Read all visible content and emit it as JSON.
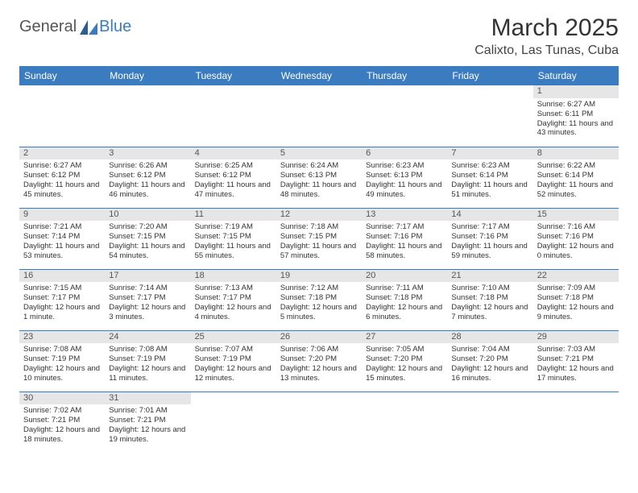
{
  "logo": {
    "text1": "General",
    "text2": "Blue"
  },
  "title": "March 2025",
  "location": "Calixto, Las Tunas, Cuba",
  "colors": {
    "header_bg": "#3b7bbf",
    "header_text": "#ffffff",
    "daynum_bg": "#e6e6e6",
    "row_border": "#3b7bbf",
    "background": "#ffffff"
  },
  "weekdays": [
    "Sunday",
    "Monday",
    "Tuesday",
    "Wednesday",
    "Thursday",
    "Friday",
    "Saturday"
  ],
  "weeks": [
    [
      null,
      null,
      null,
      null,
      null,
      null,
      {
        "n": "1",
        "sunrise": "Sunrise: 6:27 AM",
        "sunset": "Sunset: 6:11 PM",
        "daylight": "Daylight: 11 hours and 43 minutes."
      }
    ],
    [
      {
        "n": "2",
        "sunrise": "Sunrise: 6:27 AM",
        "sunset": "Sunset: 6:12 PM",
        "daylight": "Daylight: 11 hours and 45 minutes."
      },
      {
        "n": "3",
        "sunrise": "Sunrise: 6:26 AM",
        "sunset": "Sunset: 6:12 PM",
        "daylight": "Daylight: 11 hours and 46 minutes."
      },
      {
        "n": "4",
        "sunrise": "Sunrise: 6:25 AM",
        "sunset": "Sunset: 6:12 PM",
        "daylight": "Daylight: 11 hours and 47 minutes."
      },
      {
        "n": "5",
        "sunrise": "Sunrise: 6:24 AM",
        "sunset": "Sunset: 6:13 PM",
        "daylight": "Daylight: 11 hours and 48 minutes."
      },
      {
        "n": "6",
        "sunrise": "Sunrise: 6:23 AM",
        "sunset": "Sunset: 6:13 PM",
        "daylight": "Daylight: 11 hours and 49 minutes."
      },
      {
        "n": "7",
        "sunrise": "Sunrise: 6:23 AM",
        "sunset": "Sunset: 6:14 PM",
        "daylight": "Daylight: 11 hours and 51 minutes."
      },
      {
        "n": "8",
        "sunrise": "Sunrise: 6:22 AM",
        "sunset": "Sunset: 6:14 PM",
        "daylight": "Daylight: 11 hours and 52 minutes."
      }
    ],
    [
      {
        "n": "9",
        "sunrise": "Sunrise: 7:21 AM",
        "sunset": "Sunset: 7:14 PM",
        "daylight": "Daylight: 11 hours and 53 minutes."
      },
      {
        "n": "10",
        "sunrise": "Sunrise: 7:20 AM",
        "sunset": "Sunset: 7:15 PM",
        "daylight": "Daylight: 11 hours and 54 minutes."
      },
      {
        "n": "11",
        "sunrise": "Sunrise: 7:19 AM",
        "sunset": "Sunset: 7:15 PM",
        "daylight": "Daylight: 11 hours and 55 minutes."
      },
      {
        "n": "12",
        "sunrise": "Sunrise: 7:18 AM",
        "sunset": "Sunset: 7:15 PM",
        "daylight": "Daylight: 11 hours and 57 minutes."
      },
      {
        "n": "13",
        "sunrise": "Sunrise: 7:17 AM",
        "sunset": "Sunset: 7:16 PM",
        "daylight": "Daylight: 11 hours and 58 minutes."
      },
      {
        "n": "14",
        "sunrise": "Sunrise: 7:17 AM",
        "sunset": "Sunset: 7:16 PM",
        "daylight": "Daylight: 11 hours and 59 minutes."
      },
      {
        "n": "15",
        "sunrise": "Sunrise: 7:16 AM",
        "sunset": "Sunset: 7:16 PM",
        "daylight": "Daylight: 12 hours and 0 minutes."
      }
    ],
    [
      {
        "n": "16",
        "sunrise": "Sunrise: 7:15 AM",
        "sunset": "Sunset: 7:17 PM",
        "daylight": "Daylight: 12 hours and 1 minute."
      },
      {
        "n": "17",
        "sunrise": "Sunrise: 7:14 AM",
        "sunset": "Sunset: 7:17 PM",
        "daylight": "Daylight: 12 hours and 3 minutes."
      },
      {
        "n": "18",
        "sunrise": "Sunrise: 7:13 AM",
        "sunset": "Sunset: 7:17 PM",
        "daylight": "Daylight: 12 hours and 4 minutes."
      },
      {
        "n": "19",
        "sunrise": "Sunrise: 7:12 AM",
        "sunset": "Sunset: 7:18 PM",
        "daylight": "Daylight: 12 hours and 5 minutes."
      },
      {
        "n": "20",
        "sunrise": "Sunrise: 7:11 AM",
        "sunset": "Sunset: 7:18 PM",
        "daylight": "Daylight: 12 hours and 6 minutes."
      },
      {
        "n": "21",
        "sunrise": "Sunrise: 7:10 AM",
        "sunset": "Sunset: 7:18 PM",
        "daylight": "Daylight: 12 hours and 7 minutes."
      },
      {
        "n": "22",
        "sunrise": "Sunrise: 7:09 AM",
        "sunset": "Sunset: 7:18 PM",
        "daylight": "Daylight: 12 hours and 9 minutes."
      }
    ],
    [
      {
        "n": "23",
        "sunrise": "Sunrise: 7:08 AM",
        "sunset": "Sunset: 7:19 PM",
        "daylight": "Daylight: 12 hours and 10 minutes."
      },
      {
        "n": "24",
        "sunrise": "Sunrise: 7:08 AM",
        "sunset": "Sunset: 7:19 PM",
        "daylight": "Daylight: 12 hours and 11 minutes."
      },
      {
        "n": "25",
        "sunrise": "Sunrise: 7:07 AM",
        "sunset": "Sunset: 7:19 PM",
        "daylight": "Daylight: 12 hours and 12 minutes."
      },
      {
        "n": "26",
        "sunrise": "Sunrise: 7:06 AM",
        "sunset": "Sunset: 7:20 PM",
        "daylight": "Daylight: 12 hours and 13 minutes."
      },
      {
        "n": "27",
        "sunrise": "Sunrise: 7:05 AM",
        "sunset": "Sunset: 7:20 PM",
        "daylight": "Daylight: 12 hours and 15 minutes."
      },
      {
        "n": "28",
        "sunrise": "Sunrise: 7:04 AM",
        "sunset": "Sunset: 7:20 PM",
        "daylight": "Daylight: 12 hours and 16 minutes."
      },
      {
        "n": "29",
        "sunrise": "Sunrise: 7:03 AM",
        "sunset": "Sunset: 7:21 PM",
        "daylight": "Daylight: 12 hours and 17 minutes."
      }
    ],
    [
      {
        "n": "30",
        "sunrise": "Sunrise: 7:02 AM",
        "sunset": "Sunset: 7:21 PM",
        "daylight": "Daylight: 12 hours and 18 minutes."
      },
      {
        "n": "31",
        "sunrise": "Sunrise: 7:01 AM",
        "sunset": "Sunset: 7:21 PM",
        "daylight": "Daylight: 12 hours and 19 minutes."
      },
      null,
      null,
      null,
      null,
      null
    ]
  ]
}
